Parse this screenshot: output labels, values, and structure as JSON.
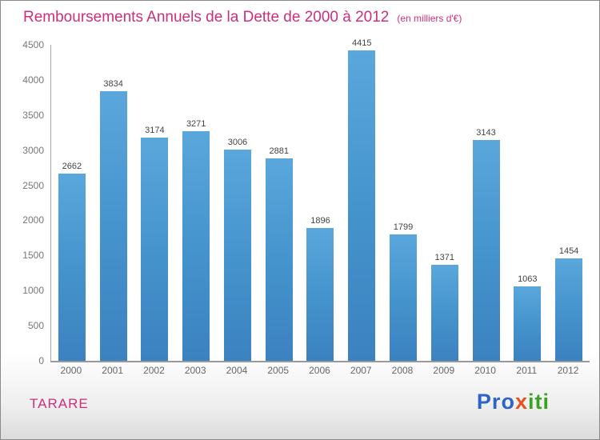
{
  "header": {
    "title": "Remboursements Annuels de la Dette de 2000 à 2012",
    "subtitle": "(en milliers d'€)"
  },
  "footer": {
    "org": "TARARE",
    "logo_text": "Proxiti",
    "logo_letters": [
      {
        "ch": "P",
        "color": "#2e63c8"
      },
      {
        "ch": "r",
        "color": "#2e63c8"
      },
      {
        "ch": "o",
        "color": "#2e63c8"
      },
      {
        "ch": "x",
        "color": "#e8501e"
      },
      {
        "ch": "i",
        "color": "#3aa31e"
      },
      {
        "ch": "t",
        "color": "#3aa31e"
      },
      {
        "ch": "i",
        "color": "#3aa31e"
      }
    ]
  },
  "colors": {
    "accent": "#cc2f7b",
    "bar_top": "#5aa7dc",
    "bar_bottom": "#3b82c0",
    "axis": "#9a9a9a",
    "tick_label": "#777777",
    "value_label": "#444444"
  },
  "chart_data": {
    "type": "bar",
    "title": "Remboursements Annuels de la Dette de 2000 à 2012",
    "subtitle": "(en milliers d'€)",
    "categories": [
      "2000",
      "2001",
      "2002",
      "2003",
      "2004",
      "2005",
      "2006",
      "2007",
      "2008",
      "2009",
      "2010",
      "2011",
      "2012"
    ],
    "values": [
      2662,
      3834,
      3174,
      3271,
      3006,
      2881,
      1896,
      4415,
      1799,
      1371,
      3143,
      1063,
      1454
    ],
    "xlabel": "",
    "ylabel": "",
    "ylim": [
      0,
      4500
    ],
    "ytick_step": 500,
    "grid": false,
    "legend": "none",
    "value_labels": "above-bars"
  }
}
